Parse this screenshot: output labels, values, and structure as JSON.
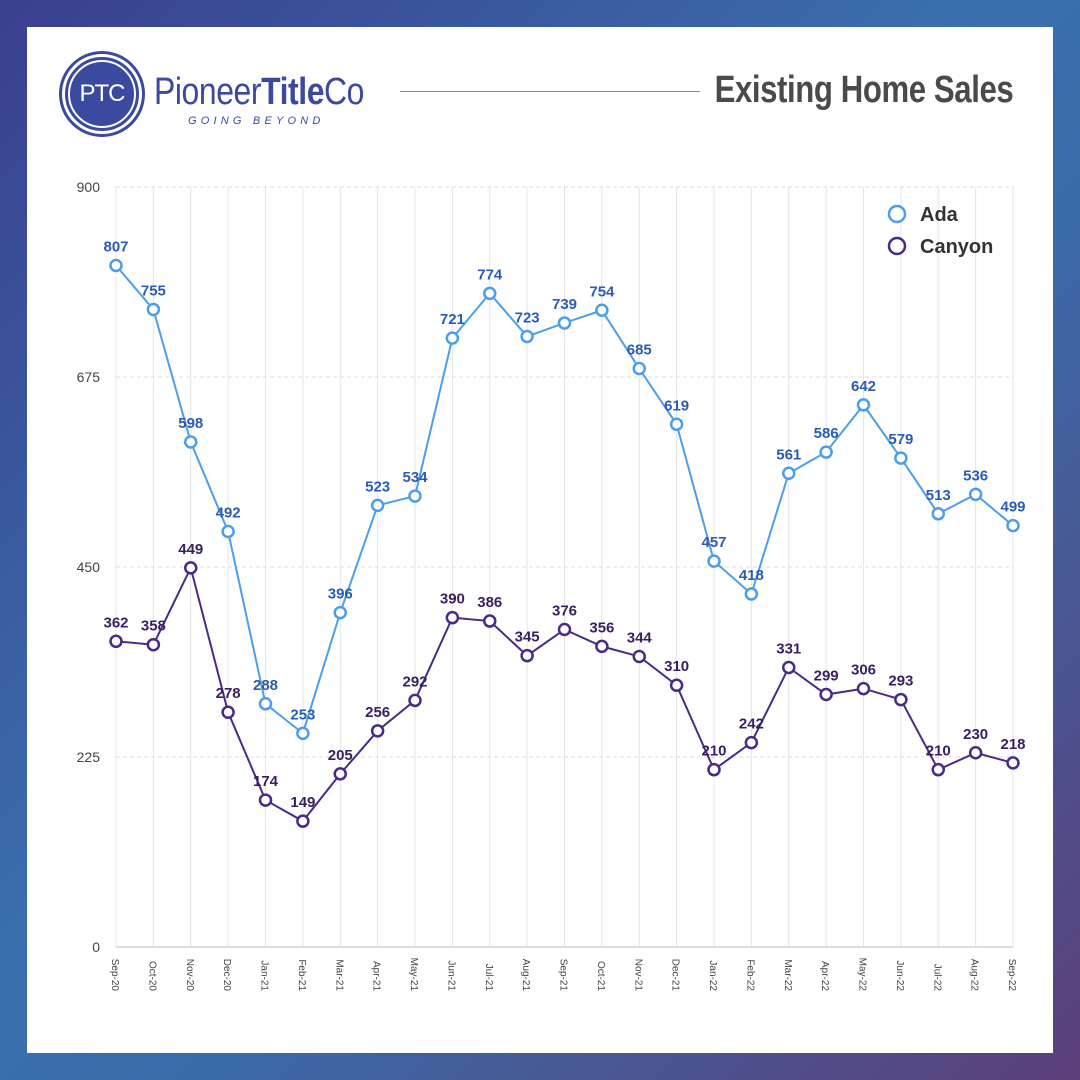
{
  "header": {
    "logo_mark": "PTC",
    "brand_pre": "Pioneer",
    "brand_bold": "Title",
    "brand_post": "Co",
    "tagline": "GOING BEYOND",
    "title": "Existing Home Sales"
  },
  "colors": {
    "ada": "#4c9ee8",
    "canyon": "#4a2a86",
    "ada_label": "#2b5cb5",
    "canyon_label": "#3a1f60",
    "brand": "#3b4a9e"
  },
  "chart_data": {
    "type": "line",
    "title": "Existing Home Sales",
    "xlabel": "",
    "ylabel": "",
    "ylim": [
      0,
      900
    ],
    "yticks": [
      0,
      225,
      450,
      675,
      900
    ],
    "grid": true,
    "legend_position": "top-right",
    "categories": [
      "Sep-20",
      "Oct-20",
      "Nov-20",
      "Dec-20",
      "Jan-21",
      "Feb-21",
      "Mar-21",
      "Apr-21",
      "May-21",
      "Jun-21",
      "Jul-21",
      "Aug-21",
      "Sep-21",
      "Oct-21",
      "Nov-21",
      "Dec-21",
      "Jan-22",
      "Feb-22",
      "Mar-22",
      "Apr-22",
      "May-22",
      "Jun-22",
      "Jul-22",
      "Aug-22",
      "Sep-22"
    ],
    "series": [
      {
        "name": "Ada",
        "values": [
          807,
          755,
          598,
          492,
          288,
          253,
          396,
          523,
          534,
          721,
          774,
          723,
          739,
          754,
          685,
          619,
          457,
          418,
          561,
          586,
          642,
          579,
          513,
          536,
          499
        ]
      },
      {
        "name": "Canyon",
        "values": [
          362,
          358,
          449,
          278,
          174,
          149,
          205,
          256,
          292,
          390,
          386,
          345,
          376,
          356,
          344,
          310,
          210,
          242,
          331,
          299,
          306,
          293,
          210,
          230,
          218
        ]
      }
    ]
  }
}
